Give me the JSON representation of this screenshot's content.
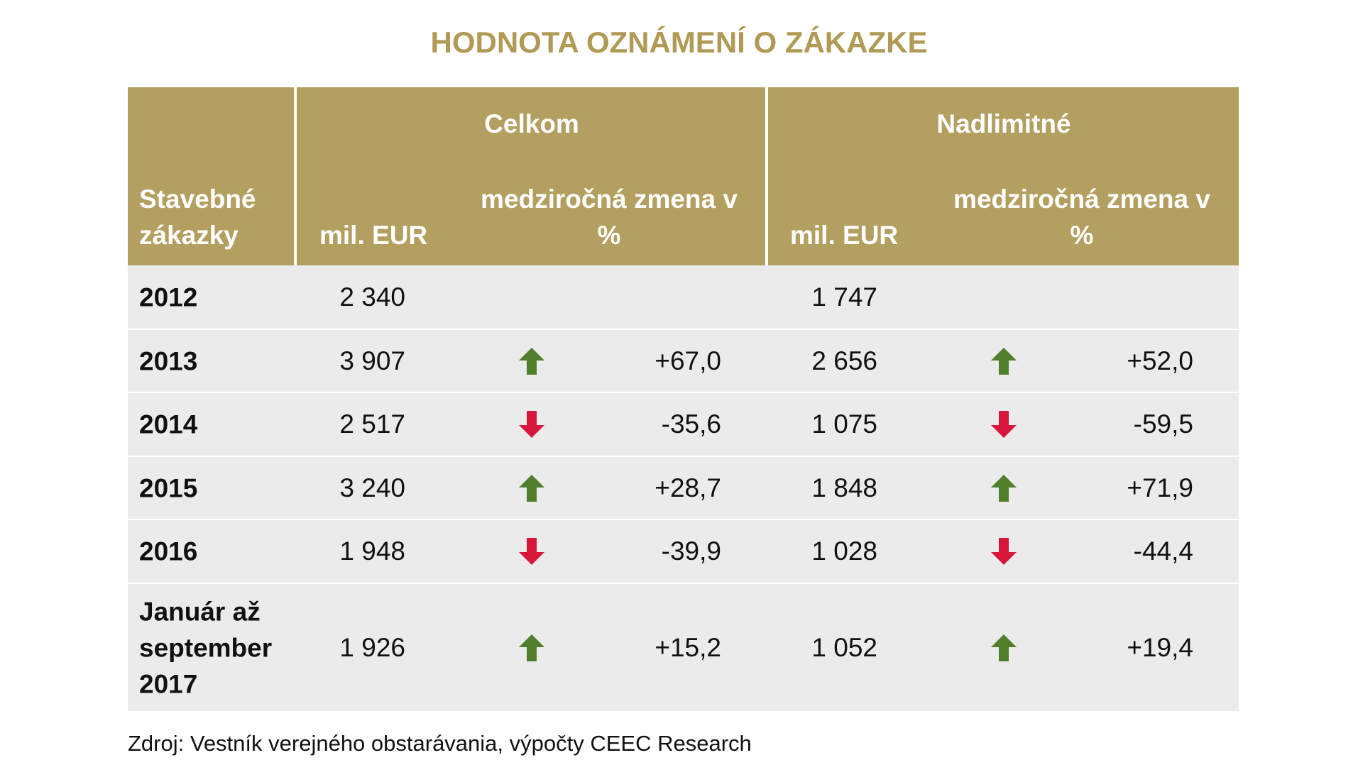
{
  "title": "HODNOTA OZNÁMENÍ O ZÁKAZKE",
  "table": {
    "header": {
      "row_label": "Stavebné zákazky",
      "groups": [
        {
          "name": "Celkom",
          "columns": [
            "mil. EUR",
            "medziročná zmena v %"
          ]
        },
        {
          "name": "Nadlimitné",
          "columns": [
            "mil. EUR",
            "medziročná zmena v %"
          ]
        }
      ]
    },
    "rows": [
      {
        "year": "2012",
        "total": "2 340",
        "above": "1 747"
      },
      {
        "year": "2013",
        "total": "3 907",
        "total_change": "+67,0",
        "above": "2 656",
        "above_change": "+52,0"
      },
      {
        "year": "2014",
        "total": "2 517",
        "total_change": "-35,6",
        "above": "1 075",
        "above_change": "-59,5"
      },
      {
        "year": "2015",
        "total": "3 240",
        "total_change": "+28,7",
        "above": "1 848",
        "above_change": "+71,9"
      },
      {
        "year": "2016",
        "total": "1 948",
        "total_change": "-39,9",
        "above": "1 028",
        "above_change": "-44,4"
      },
      {
        "year": "Január až september 2017",
        "total": "1 926",
        "total_change": "+15,2",
        "above": "1 052",
        "above_change": "+19,4"
      }
    ]
  },
  "source": "Zdroj: Vestník verejného obstarávania, výpočty CEEC Research"
}
